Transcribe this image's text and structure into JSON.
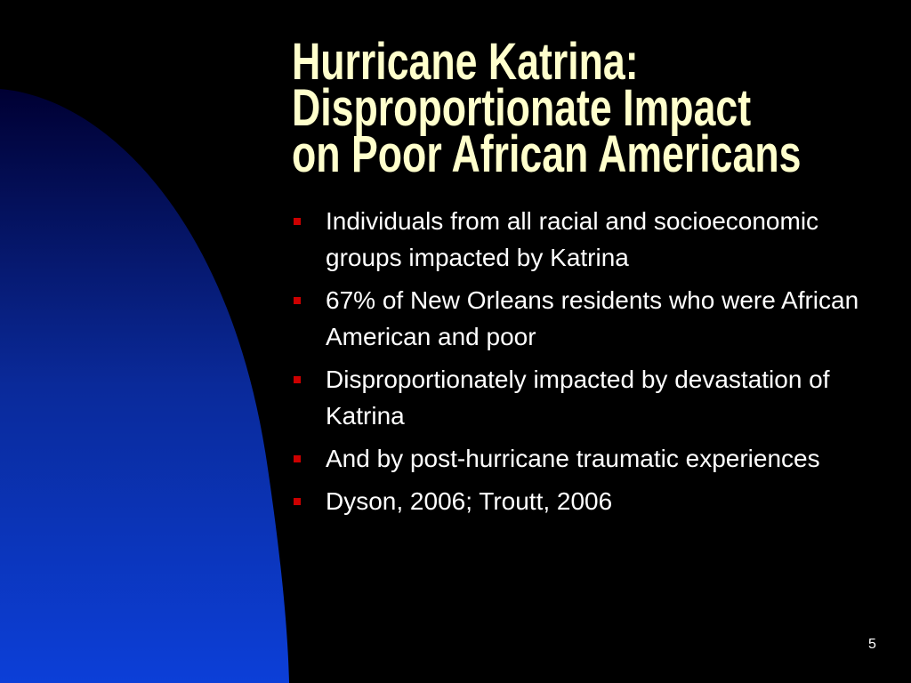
{
  "slide": {
    "title_lines": [
      "Hurricane Katrina:",
      "Disproportionate Impact",
      "on Poor African Americans"
    ],
    "bullets": [
      "Individuals from all racial and socioeconomic groups impacted by Katrina",
      "67% of New Orleans residents who were African American and poor",
      "Disproportionately impacted by devastation of Katrina",
      "And by post-hurricane traumatic experiences",
      "Dyson, 2006; Troutt, 2006"
    ],
    "page_number": "5"
  }
}
